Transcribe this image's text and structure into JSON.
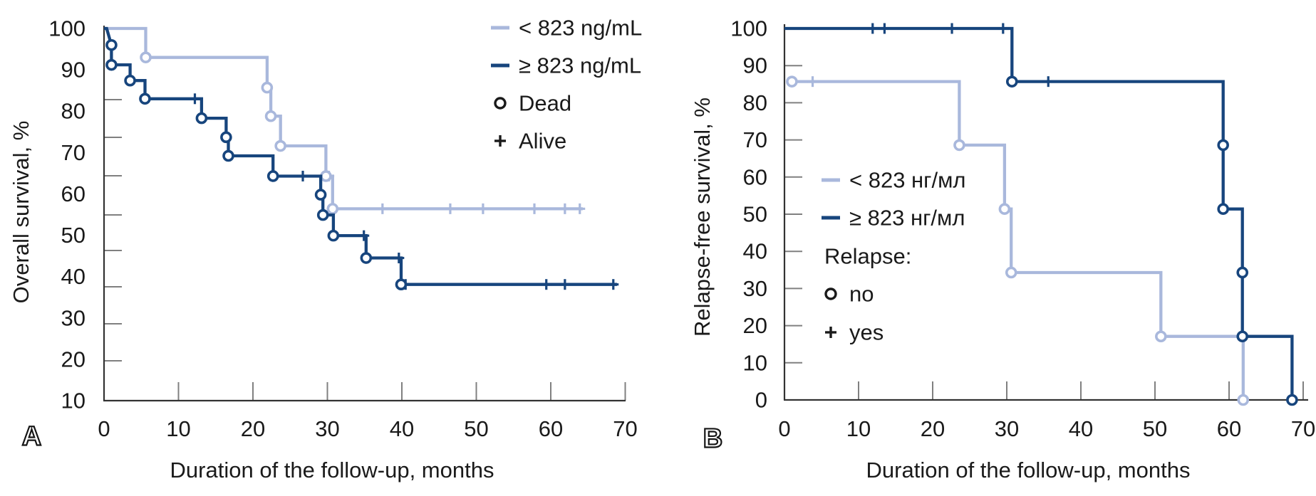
{
  "figure": {
    "background": "#ffffff",
    "colors": {
      "light": "#a9b8dc",
      "dark": "#17457d",
      "axis": "#333333",
      "tick": "#808080",
      "text": "#1a1a1a",
      "marker_black": "#1a1a1a"
    }
  },
  "chart_data": [
    {
      "type": "line",
      "subtype": "kaplan-meier-step",
      "panel_label": "A",
      "title": "",
      "xlabel": "Duration of the follow-up, months",
      "ylabel": "Overall survival, %",
      "xlim": [
        0,
        70
      ],
      "ylim": [
        10,
        100
      ],
      "x_ticks": [
        0,
        10,
        20,
        30,
        40,
        50,
        60,
        70
      ],
      "y_ticks": [
        100,
        90,
        80,
        70,
        60,
        50,
        40,
        30,
        20,
        10
      ],
      "grid": false,
      "legend_position": "top-right-outside",
      "legend": [
        {
          "marker": "line-light",
          "label": "< 823 ng/mL"
        },
        {
          "marker": "line-dark",
          "label": "≥ 823 ng/mL"
        },
        {
          "marker": "circle",
          "label": "Dead"
        },
        {
          "marker": "plus",
          "label": "Alive"
        }
      ],
      "series": [
        {
          "name": "< 823 ng/mL",
          "color_key": "light",
          "steps": [
            [
              0,
              100
            ],
            [
              5.6,
              100
            ],
            [
              5.6,
              93
            ],
            [
              21.9,
              93
            ],
            [
              21.9,
              85.7
            ],
            [
              22.4,
              85.7
            ],
            [
              22.4,
              78.8
            ],
            [
              23.7,
              78.8
            ],
            [
              23.7,
              71.6
            ],
            [
              29.8,
              71.6
            ],
            [
              29.8,
              64.3
            ],
            [
              30.7,
              64.3
            ],
            [
              30.7,
              56.4
            ],
            [
              64.3,
              56.4
            ]
          ],
          "circles": [
            [
              5.6,
              93
            ],
            [
              21.9,
              85.7
            ],
            [
              22.4,
              78.8
            ],
            [
              23.7,
              71.6
            ],
            [
              29.8,
              64.3
            ],
            [
              30.7,
              56.4
            ]
          ],
          "pluses": [
            [
              30.2,
              64.3
            ],
            [
              37.4,
              56.4
            ],
            [
              46.5,
              56.4
            ],
            [
              50.9,
              56.4
            ],
            [
              57.8,
              56.4
            ],
            [
              61.9,
              56.4
            ],
            [
              63.9,
              56.4
            ]
          ]
        },
        {
          "name": "≥ 823 ng/mL",
          "color_key": "dark",
          "steps": [
            [
              0,
              100
            ],
            [
              0.35,
              100
            ],
            [
              1.0,
              96
            ],
            [
              1.0,
              91.2
            ],
            [
              3.5,
              91.2
            ],
            [
              3.5,
              87.4
            ],
            [
              5.5,
              87.4
            ],
            [
              5.5,
              83
            ],
            [
              13.1,
              83
            ],
            [
              13.1,
              78.3
            ],
            [
              16.4,
              78.3
            ],
            [
              16.4,
              73.7
            ],
            [
              16.7,
              73.7
            ],
            [
              16.7,
              69.2
            ],
            [
              22.7,
              69.2
            ],
            [
              22.7,
              64.3
            ],
            [
              29.1,
              64.3
            ],
            [
              29.1,
              59.8
            ],
            [
              29.4,
              59.8
            ],
            [
              29.4,
              54.9
            ],
            [
              30.8,
              54.9
            ],
            [
              30.8,
              49.9
            ],
            [
              35.2,
              49.9
            ],
            [
              35.2,
              44.5
            ],
            [
              39.9,
              44.5
            ],
            [
              39.9,
              38.1
            ],
            [
              68.9,
              38.1
            ]
          ],
          "circles": [
            [
              1.0,
              96
            ],
            [
              1.0,
              91.2
            ],
            [
              3.5,
              87.4
            ],
            [
              5.5,
              83
            ],
            [
              13.1,
              78.3
            ],
            [
              16.4,
              73.7
            ],
            [
              16.7,
              69.2
            ],
            [
              22.7,
              64.3
            ],
            [
              29.1,
              59.8
            ],
            [
              29.4,
              54.9
            ],
            [
              30.8,
              49.9
            ],
            [
              35.2,
              44.5
            ],
            [
              39.9,
              38.1
            ]
          ],
          "pluses": [
            [
              12.2,
              83
            ],
            [
              26.7,
              64.3
            ],
            [
              34.9,
              49.9
            ],
            [
              39.6,
              44.5
            ],
            [
              40.5,
              38.1
            ],
            [
              59.4,
              38.1
            ],
            [
              61.9,
              38.1
            ],
            [
              68.4,
              38.1
            ]
          ]
        }
      ]
    },
    {
      "type": "line",
      "subtype": "kaplan-meier-step",
      "panel_label": "B",
      "title": "",
      "xlabel": "Duration of the follow-up, months",
      "ylabel": "Relapse-free survival, %",
      "xlim": [
        0,
        70
      ],
      "ylim": [
        0,
        100
      ],
      "x_ticks": [
        0,
        10,
        20,
        30,
        40,
        50,
        60,
        70
      ],
      "y_ticks": [
        100,
        90,
        80,
        70,
        60,
        50,
        40,
        30,
        20,
        10,
        0
      ],
      "grid": false,
      "legend_position": "inside-left",
      "legend": [
        {
          "marker": "line-light",
          "label": "< 823 нг/мл"
        },
        {
          "marker": "line-dark",
          "label": "≥ 823 нг/мл"
        },
        {
          "marker": "none",
          "label": "Relapse:"
        },
        {
          "marker": "circle",
          "label": "no"
        },
        {
          "marker": "plus",
          "label": "yes"
        }
      ],
      "series": [
        {
          "name": "< 823 нг/мл",
          "color_key": "light",
          "steps": [
            [
              1,
              85.7
            ],
            [
              23.6,
              85.7
            ],
            [
              23.6,
              68.6
            ],
            [
              29.7,
              68.6
            ],
            [
              29.7,
              51.4
            ],
            [
              30.6,
              51.4
            ],
            [
              30.6,
              34.3
            ],
            [
              50.8,
              34.3
            ],
            [
              50.8,
              17.1
            ],
            [
              61.9,
              17.1
            ],
            [
              61.9,
              0
            ]
          ],
          "circles": [
            [
              1,
              85.7
            ],
            [
              23.6,
              68.6
            ],
            [
              29.7,
              51.4
            ],
            [
              30.6,
              34.3
            ],
            [
              50.8,
              17.1
            ],
            [
              61.9,
              0
            ]
          ],
          "pluses": [
            [
              3.8,
              85.7
            ]
          ]
        },
        {
          "name": "≥ 823 нг/мл",
          "color_key": "dark",
          "steps": [
            [
              0,
              100
            ],
            [
              30.7,
              100
            ],
            [
              30.7,
              85.7
            ],
            [
              59.2,
              85.7
            ],
            [
              59.2,
              51.4
            ],
            [
              61.8,
              51.4
            ],
            [
              61.8,
              17.1
            ],
            [
              68.5,
              17.1
            ],
            [
              68.5,
              0
            ]
          ],
          "circles": [
            [
              30.7,
              85.7
            ],
            [
              59.2,
              68.6
            ],
            [
              59.2,
              51.4
            ],
            [
              61.8,
              34.3
            ],
            [
              61.8,
              17.1
            ],
            [
              68.5,
              0
            ]
          ],
          "pluses": [
            [
              11.9,
              100
            ],
            [
              13.5,
              100
            ],
            [
              22.6,
              100
            ],
            [
              29.5,
              100
            ],
            [
              35.6,
              85.7
            ]
          ]
        }
      ]
    }
  ]
}
